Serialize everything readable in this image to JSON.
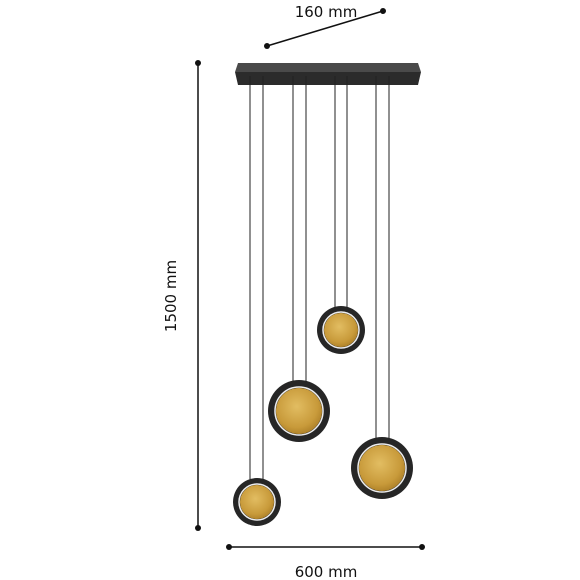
{
  "dimensions": {
    "depth": "160 mm",
    "height": "1500 mm",
    "width": "600 mm"
  }
}
